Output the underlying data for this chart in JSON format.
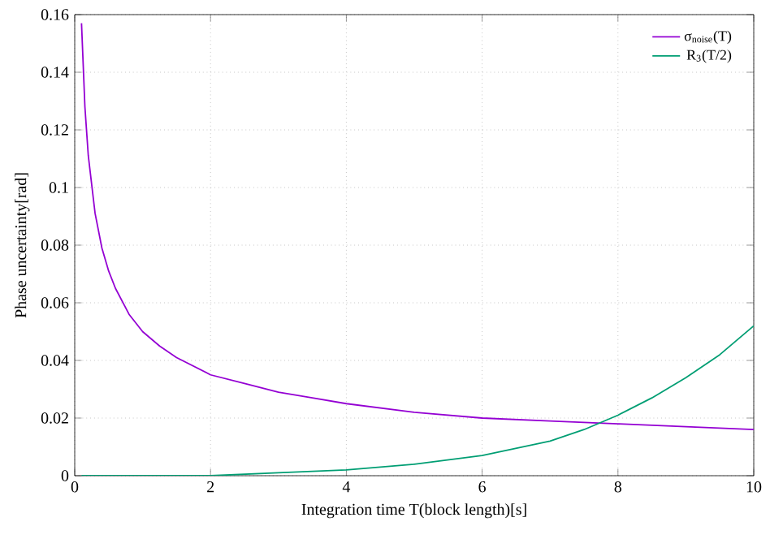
{
  "chart_data": {
    "type": "line",
    "xlabel": "Integration time T(block length)[s]",
    "ylabel": "Phase uncertainty[rad]",
    "xlim": [
      0,
      10
    ],
    "ylim": [
      0,
      0.16
    ],
    "xticks": [
      0,
      2,
      4,
      6,
      8,
      10
    ],
    "yticks": [
      0,
      0.02,
      0.04,
      0.06,
      0.08,
      0.1,
      0.12,
      0.14,
      0.16
    ],
    "grid": true,
    "legend": "top right",
    "marker": "none",
    "line_style": "solid",
    "series": [
      {
        "name": "σ$_{noise}$(T)",
        "color": "#9400d3",
        "x": [
          0.1,
          0.15,
          0.2,
          0.3,
          0.4,
          0.5,
          0.6,
          0.8,
          1,
          1.25,
          1.5,
          2,
          2.5,
          3,
          3.5,
          4,
          5,
          6,
          7,
          8,
          9,
          10
        ],
        "values": [
          0.157,
          0.128,
          0.111,
          0.091,
          0.079,
          0.071,
          0.065,
          0.056,
          0.05,
          0.045,
          0.041,
          0.035,
          0.032,
          0.029,
          0.027,
          0.025,
          0.022,
          0.02,
          0.019,
          0.018,
          0.017,
          0.016
        ]
      },
      {
        "name": "R$_{3}$(T/2)",
        "color": "#009e73",
        "x": [
          0.1,
          1,
          2,
          3,
          4,
          5,
          6,
          7,
          7.5,
          8,
          8.5,
          9,
          9.5,
          10
        ],
        "values": [
          0,
          0,
          0,
          0.001,
          0.002,
          0.004,
          0.007,
          0.012,
          0.016,
          0.021,
          0.027,
          0.034,
          0.042,
          0.052
        ]
      }
    ]
  }
}
